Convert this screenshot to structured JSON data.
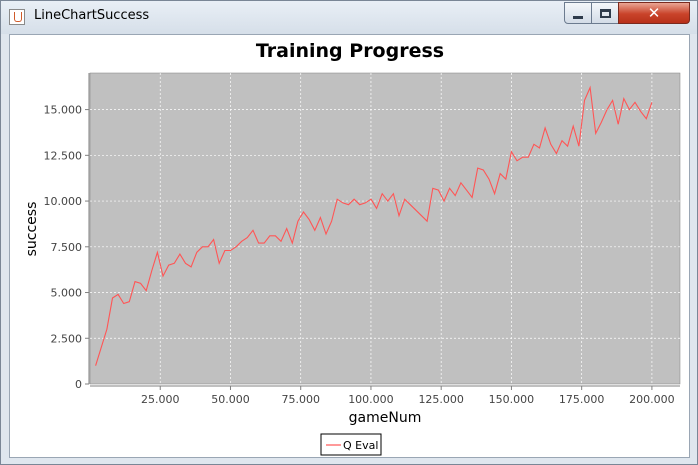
{
  "window": {
    "title": "LineChartSuccess",
    "controls": {
      "minimize": "minimize",
      "maximize": "maximize",
      "close": "close"
    }
  },
  "chart_data": {
    "type": "line",
    "title": "Training Progress",
    "xlabel": "gameNum",
    "ylabel": "success",
    "xlim": [
      0,
      210000
    ],
    "ylim": [
      0,
      17000
    ],
    "xticks": [
      25000,
      50000,
      75000,
      100000,
      125000,
      150000,
      175000,
      200000
    ],
    "xtick_labels": [
      "25.000",
      "50.000",
      "75.000",
      "100.000",
      "125.000",
      "150.000",
      "175.000",
      "200.000"
    ],
    "yticks": [
      0,
      2500,
      5000,
      7500,
      10000,
      12500,
      15000
    ],
    "ytick_labels": [
      "0",
      "2.500",
      "5.000",
      "7.500",
      "10.000",
      "12.500",
      "15.000"
    ],
    "grid": true,
    "background": "#c0c0c0",
    "line_color": "#ff5555",
    "legend_position": "bottom",
    "series": [
      {
        "name": "Q Eval",
        "x": [
          2000,
          6000,
          8000,
          10000,
          12000,
          14000,
          16000,
          18000,
          20000,
          22000,
          24000,
          26000,
          28000,
          30000,
          32000,
          34000,
          36000,
          38000,
          40000,
          42000,
          44000,
          46000,
          48000,
          50000,
          52000,
          54000,
          56000,
          58000,
          60000,
          62000,
          64000,
          66000,
          68000,
          70000,
          72000,
          74000,
          76000,
          78000,
          80000,
          82000,
          84000,
          86000,
          88000,
          90000,
          92000,
          94000,
          96000,
          98000,
          100000,
          102000,
          104000,
          106000,
          108000,
          110000,
          112000,
          114000,
          116000,
          118000,
          120000,
          122000,
          124000,
          126000,
          128000,
          130000,
          132000,
          134000,
          136000,
          138000,
          140000,
          142000,
          144000,
          146000,
          148000,
          150000,
          152000,
          154000,
          156000,
          158000,
          160000,
          162000,
          164000,
          166000,
          168000,
          170000,
          172000,
          174000,
          176000,
          178000,
          180000,
          182000,
          184000,
          186000,
          188000,
          190000,
          192000,
          194000,
          196000,
          198000,
          200000
        ],
        "y": [
          1000,
          3000,
          4700,
          4900,
          4400,
          4500,
          5600,
          5500,
          5100,
          6200,
          7200,
          5900,
          6500,
          6600,
          7100,
          6600,
          6400,
          7200,
          7500,
          7500,
          7900,
          6600,
          7300,
          7300,
          7500,
          7800,
          8000,
          8400,
          7700,
          7700,
          8100,
          8100,
          7800,
          8500,
          7700,
          8900,
          9400,
          9000,
          8400,
          9100,
          8200,
          8900,
          10100,
          9900,
          9800,
          10100,
          9800,
          9900,
          10100,
          9600,
          10400,
          10000,
          10400,
          9200,
          10100,
          9800,
          9500,
          9200,
          8900,
          10700,
          10600,
          10000,
          10700,
          10300,
          11000,
          10600,
          10200,
          11800,
          11700,
          11200,
          10400,
          11500,
          11200,
          12700,
          12200,
          12400,
          12400,
          13100,
          12900,
          14000,
          13100,
          12600,
          13300,
          13000,
          14100,
          13000,
          15500,
          16200,
          13700,
          14300,
          15000,
          15500,
          14200,
          15600,
          15000,
          15400,
          14900,
          14500,
          15400
        ]
      }
    ]
  }
}
